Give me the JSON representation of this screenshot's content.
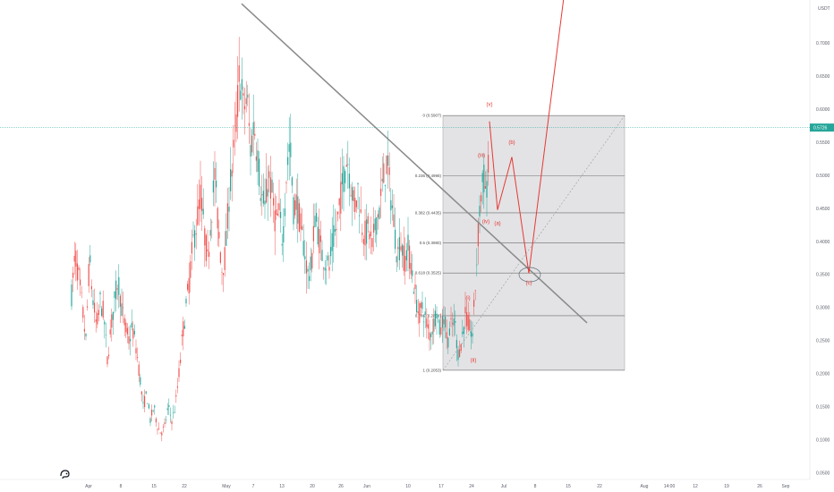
{
  "chart_data": {
    "type": "candlestick",
    "currency": "USDT",
    "y_ticks": [
      "0.7000",
      "0.6500",
      "0.6000",
      "0.5500",
      "0.5000",
      "0.4500",
      "0.4000",
      "0.3500",
      "0.3000",
      "0.2500",
      "0.2000",
      "0.1500",
      "0.1000",
      "0.0500"
    ],
    "ylim": [
      0.045,
      0.755
    ],
    "x_ticks": [
      "Apr",
      "8",
      "15",
      "22",
      "May",
      "7",
      "13",
      "20",
      "26",
      "Jun",
      "10",
      "17",
      "24",
      "Jul",
      "8",
      "15",
      "22",
      "Aug",
      "14:00",
      "12",
      "19",
      "26",
      "Sep"
    ],
    "current_price": {
      "label": "0.5726",
      "value": 0.5726,
      "color": "#26a69a"
    },
    "colors": {
      "up": "#26a69a",
      "down": "#ef5350",
      "fib_box": "#d9d9dc",
      "trend": "#8a8a8a",
      "projection": "#e53935"
    },
    "fib_levels": [
      {
        "label": "0 (0.5907)",
        "value": 0.5907
      },
      {
        "label": "0.236 (0.4998)",
        "value": 0.4998
      },
      {
        "label": "0.382 (0.4435)",
        "value": 0.4435
      },
      {
        "label": "0.5 (0.3980)",
        "value": 0.398
      },
      {
        "label": "0.618 (0.3525)",
        "value": 0.3525
      },
      {
        "label": "0.786 (0.2878)",
        "value": 0.2878
      },
      {
        "label": "1 (0.2053)",
        "value": 0.2053
      }
    ],
    "wave_labels": [
      {
        "label": "(i)",
        "t": 523,
        "value": 0.312
      },
      {
        "label": "(ii)",
        "t": 529,
        "value": 0.218
      },
      {
        "label": "(iii)",
        "t": 538,
        "value": 0.528
      },
      {
        "label": "(iv)",
        "t": 543,
        "value": 0.428
      },
      {
        "label": "(v)",
        "t": 547,
        "value": 0.605
      },
      {
        "label": "(a)",
        "t": 556,
        "value": 0.425
      },
      {
        "label": "(b)",
        "t": 572,
        "value": 0.548
      },
      {
        "label": "(c)",
        "t": 591,
        "value": 0.335
      }
    ],
    "series": [
      {
        "name": "",
        "points": [
          [
            80,
            0.32
          ],
          [
            84,
            0.38
          ],
          [
            88,
            0.345
          ],
          [
            92,
            0.3
          ],
          [
            96,
            0.25
          ],
          [
            100,
            0.375
          ],
          [
            104,
            0.31
          ],
          [
            108,
            0.27
          ],
          [
            112,
            0.31
          ],
          [
            116,
            0.29
          ],
          [
            120,
            0.22
          ],
          [
            124,
            0.27
          ],
          [
            128,
            0.31
          ],
          [
            132,
            0.345
          ],
          [
            136,
            0.3
          ],
          [
            140,
            0.27
          ],
          [
            144,
            0.25
          ],
          [
            148,
            0.27
          ],
          [
            152,
            0.24
          ],
          [
            156,
            0.2
          ],
          [
            160,
            0.15
          ],
          [
            164,
            0.17
          ],
          [
            168,
            0.13
          ],
          [
            172,
            0.15
          ],
          [
            176,
            0.12
          ],
          [
            180,
            0.11
          ],
          [
            184,
            0.12
          ],
          [
            188,
            0.15
          ],
          [
            192,
            0.13
          ],
          [
            196,
            0.15
          ],
          [
            200,
            0.2
          ],
          [
            204,
            0.26
          ],
          [
            208,
            0.3
          ],
          [
            212,
            0.35
          ],
          [
            216,
            0.4
          ],
          [
            220,
            0.43
          ],
          [
            224,
            0.47
          ],
          [
            228,
            0.42
          ],
          [
            232,
            0.37
          ],
          [
            236,
            0.44
          ],
          [
            240,
            0.5
          ],
          [
            244,
            0.42
          ],
          [
            248,
            0.36
          ],
          [
            252,
            0.38
          ],
          [
            256,
            0.47
          ],
          [
            260,
            0.52
          ],
          [
            264,
            0.58
          ],
          [
            268,
            0.66
          ],
          [
            272,
            0.6
          ],
          [
            276,
            0.62
          ],
          [
            280,
            0.54
          ],
          [
            284,
            0.58
          ],
          [
            288,
            0.53
          ],
          [
            292,
            0.47
          ],
          [
            296,
            0.45
          ],
          [
            300,
            0.5
          ],
          [
            304,
            0.47
          ],
          [
            308,
            0.43
          ],
          [
            312,
            0.44
          ],
          [
            316,
            0.4
          ],
          [
            320,
            0.5
          ],
          [
            324,
            0.55
          ],
          [
            328,
            0.45
          ],
          [
            332,
            0.46
          ],
          [
            336,
            0.42
          ],
          [
            340,
            0.39
          ],
          [
            344,
            0.35
          ],
          [
            348,
            0.36
          ],
          [
            352,
            0.44
          ],
          [
            356,
            0.41
          ],
          [
            360,
            0.38
          ],
          [
            364,
            0.37
          ],
          [
            368,
            0.36
          ],
          [
            372,
            0.4
          ],
          [
            376,
            0.42
          ],
          [
            380,
            0.46
          ],
          [
            384,
            0.5
          ],
          [
            388,
            0.53
          ],
          [
            392,
            0.49
          ],
          [
            396,
            0.45
          ],
          [
            400,
            0.48
          ],
          [
            404,
            0.43
          ],
          [
            408,
            0.41
          ],
          [
            412,
            0.42
          ],
          [
            416,
            0.39
          ],
          [
            420,
            0.43
          ],
          [
            424,
            0.45
          ],
          [
            428,
            0.49
          ],
          [
            432,
            0.52
          ],
          [
            436,
            0.48
          ],
          [
            440,
            0.43
          ],
          [
            444,
            0.38
          ],
          [
            448,
            0.4
          ],
          [
            452,
            0.37
          ],
          [
            456,
            0.39
          ],
          [
            460,
            0.36
          ],
          [
            464,
            0.32
          ],
          [
            468,
            0.29
          ],
          [
            472,
            0.3
          ],
          [
            476,
            0.28
          ],
          [
            480,
            0.26
          ],
          [
            484,
            0.27
          ],
          [
            488,
            0.3
          ],
          [
            492,
            0.26
          ],
          [
            496,
            0.29
          ],
          [
            500,
            0.25
          ],
          [
            504,
            0.27
          ],
          [
            508,
            0.28
          ],
          [
            512,
            0.23
          ],
          [
            516,
            0.25
          ],
          [
            520,
            0.29
          ],
          [
            524,
            0.27
          ],
          [
            528,
            0.26
          ],
          [
            532,
            0.35
          ],
          [
            536,
            0.45
          ],
          [
            540,
            0.5
          ],
          [
            544,
            0.47
          ],
          [
            547,
            0.585
          ]
        ]
      }
    ],
    "trendline": {
      "from": [
        270,
        0.76
      ],
      "to": [
        656,
        0.277
      ]
    },
    "fib_box": {
      "t_start": 495,
      "t_end": 698,
      "top": 0.5907,
      "bottom": 0.2053
    },
    "diagonal": {
      "from": [
        495,
        0.2053
      ],
      "to": [
        698,
        0.5907
      ]
    },
    "projection": [
      [
        547,
        0.582
      ],
      [
        556,
        0.448
      ],
      [
        572,
        0.528
      ],
      [
        591,
        0.352
      ],
      [
        631,
        0.78
      ]
    ],
    "target_ellipse": {
      "t": 592,
      "value": 0.35
    }
  }
}
